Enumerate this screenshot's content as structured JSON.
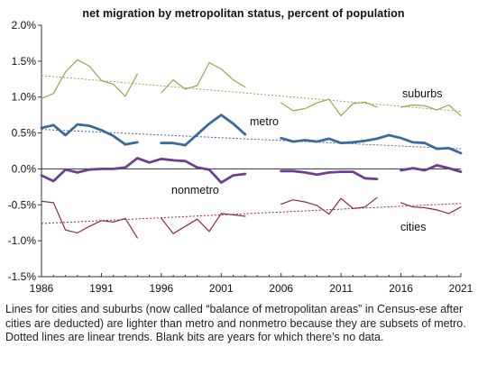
{
  "chart_data": {
    "type": "line",
    "title": "net migration by metropolitan status, percent of population",
    "xlabel": "",
    "ylabel": "",
    "xlim": [
      1986,
      2021
    ],
    "ylim": [
      -1.5,
      2.0
    ],
    "x_ticks": [
      1986,
      1991,
      1996,
      2001,
      2006,
      2011,
      2016,
      2021
    ],
    "y_ticks": [
      "2.0%",
      "1.5%",
      "1.0%",
      "0.5%",
      "0.0%",
      "-0.5%",
      "-1.0%",
      "-1.5%"
    ],
    "y_tick_values": [
      2.0,
      1.5,
      1.0,
      0.5,
      0.0,
      -0.5,
      -1.0,
      -1.5
    ],
    "grid": false,
    "legend": "none (series labelled directly on chart)",
    "series": [
      {
        "name": "suburbs",
        "color": "#8faa4e",
        "width": "thin",
        "points": [
          [
            1986,
            0.98
          ],
          [
            1987,
            1.05
          ],
          [
            1988,
            1.35
          ],
          [
            1989,
            1.52
          ],
          [
            1990,
            1.43
          ],
          [
            1991,
            1.23
          ],
          [
            1992,
            1.18
          ],
          [
            1993,
            1.01
          ],
          [
            1994,
            1.32
          ],
          [
            1996,
            1.06
          ],
          [
            1997,
            1.24
          ],
          [
            1998,
            1.11
          ],
          [
            1999,
            1.16
          ],
          [
            2000,
            1.48
          ],
          [
            2001,
            1.39
          ],
          [
            2002,
            1.24
          ],
          [
            2003,
            1.14
          ],
          [
            2006,
            0.92
          ],
          [
            2007,
            0.81
          ],
          [
            2008,
            0.84
          ],
          [
            2009,
            0.92
          ],
          [
            2010,
            0.97
          ],
          [
            2011,
            0.74
          ],
          [
            2012,
            0.91
          ],
          [
            2013,
            0.93
          ],
          [
            2014,
            0.86
          ],
          [
            2016,
            0.86
          ],
          [
            2017,
            0.89
          ],
          [
            2018,
            0.88
          ],
          [
            2019,
            0.82
          ],
          [
            2020,
            0.89
          ],
          [
            2021,
            0.74
          ]
        ],
        "trend": [
          [
            1986,
            1.3
          ],
          [
            2021,
            0.8
          ]
        ]
      },
      {
        "name": "metro",
        "color": "#3d6a9e",
        "width": "thick",
        "points": [
          [
            1986,
            0.57
          ],
          [
            1987,
            0.61
          ],
          [
            1988,
            0.47
          ],
          [
            1989,
            0.62
          ],
          [
            1990,
            0.6
          ],
          [
            1991,
            0.54
          ],
          [
            1992,
            0.46
          ],
          [
            1993,
            0.34
          ],
          [
            1994,
            0.37
          ],
          [
            1996,
            0.36
          ],
          [
            1997,
            0.36
          ],
          [
            1998,
            0.33
          ],
          [
            1999,
            0.48
          ],
          [
            2000,
            0.63
          ],
          [
            2001,
            0.75
          ],
          [
            2002,
            0.63
          ],
          [
            2003,
            0.48
          ],
          [
            2006,
            0.43
          ],
          [
            2007,
            0.38
          ],
          [
            2008,
            0.4
          ],
          [
            2009,
            0.38
          ],
          [
            2010,
            0.42
          ],
          [
            2011,
            0.36
          ],
          [
            2012,
            0.37
          ],
          [
            2013,
            0.39
          ],
          [
            2014,
            0.42
          ],
          [
            2015,
            0.47
          ],
          [
            2016,
            0.43
          ],
          [
            2017,
            0.37
          ],
          [
            2018,
            0.36
          ],
          [
            2019,
            0.28
          ],
          [
            2020,
            0.29
          ],
          [
            2021,
            0.22
          ]
        ],
        "trend": [
          [
            1986,
            0.55
          ],
          [
            2021,
            0.28
          ]
        ]
      },
      {
        "name": "nonmetro",
        "color": "#6e3f8f",
        "width": "thick",
        "points": [
          [
            1986,
            -0.09
          ],
          [
            1987,
            -0.17
          ],
          [
            1988,
            -0.01
          ],
          [
            1989,
            -0.05
          ],
          [
            1990,
            -0.01
          ],
          [
            1991,
            0.0
          ],
          [
            1992,
            0.0
          ],
          [
            1993,
            0.02
          ],
          [
            1994,
            0.15
          ],
          [
            1995,
            0.09
          ],
          [
            1996,
            0.14
          ],
          [
            1997,
            0.12
          ],
          [
            1998,
            0.11
          ],
          [
            1999,
            0.02
          ],
          [
            2000,
            -0.01
          ],
          [
            2001,
            -0.19
          ],
          [
            2002,
            -0.09
          ],
          [
            2003,
            -0.07
          ],
          [
            2006,
            -0.03
          ],
          [
            2007,
            -0.03
          ],
          [
            2008,
            -0.05
          ],
          [
            2009,
            -0.08
          ],
          [
            2010,
            -0.05
          ],
          [
            2011,
            -0.04
          ],
          [
            2012,
            -0.04
          ],
          [
            2013,
            -0.13
          ],
          [
            2014,
            -0.14
          ],
          [
            2016,
            -0.02
          ],
          [
            2017,
            0.01
          ],
          [
            2018,
            -0.02
          ],
          [
            2019,
            0.05
          ],
          [
            2020,
            0.01
          ],
          [
            2021,
            -0.04
          ]
        ]
      },
      {
        "name": "cities",
        "color": "#8e2a45",
        "width": "thin",
        "points": [
          [
            1986,
            -0.45
          ],
          [
            1987,
            -0.47
          ],
          [
            1988,
            -0.85
          ],
          [
            1989,
            -0.89
          ],
          [
            1990,
            -0.8
          ],
          [
            1991,
            -0.72
          ],
          [
            1992,
            -0.74
          ],
          [
            1993,
            -0.69
          ],
          [
            1994,
            -0.96
          ],
          [
            1996,
            -0.69
          ],
          [
            1997,
            -0.9
          ],
          [
            1998,
            -0.8
          ],
          [
            1999,
            -0.7
          ],
          [
            2000,
            -0.87
          ],
          [
            2001,
            -0.62
          ],
          [
            2002,
            -0.64
          ],
          [
            2003,
            -0.66
          ],
          [
            2006,
            -0.49
          ],
          [
            2007,
            -0.43
          ],
          [
            2008,
            -0.46
          ],
          [
            2009,
            -0.51
          ],
          [
            2010,
            -0.63
          ],
          [
            2011,
            -0.41
          ],
          [
            2012,
            -0.55
          ],
          [
            2013,
            -0.53
          ],
          [
            2014,
            -0.4
          ],
          [
            2016,
            -0.47
          ],
          [
            2017,
            -0.53
          ],
          [
            2018,
            -0.54
          ],
          [
            2019,
            -0.57
          ],
          [
            2020,
            -0.62
          ],
          [
            2021,
            -0.53
          ]
        ],
        "trend": [
          [
            1986,
            -0.76
          ],
          [
            2021,
            -0.48
          ]
        ]
      }
    ]
  },
  "labels": {
    "suburbs": "suburbs",
    "metro": "metro",
    "nonmetro": "nonmetro",
    "cities": "cities"
  },
  "caption": "Lines for cities and suburbs (now called “balance of metropolitan areas” in Census-ese after cities are deducted) are lighter than metro and nonmetro because they are subsets of metro. Dotted lines are linear trends. Blank bits are years for which there’s no data."
}
